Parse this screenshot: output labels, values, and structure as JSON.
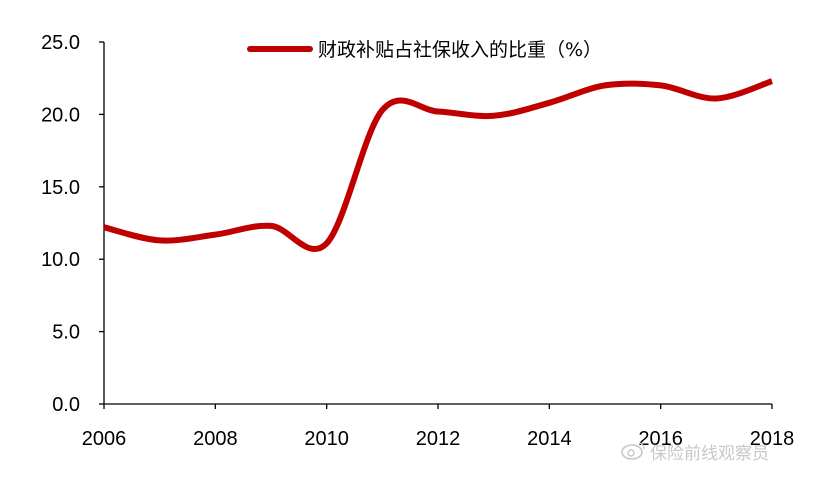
{
  "chart_data": {
    "type": "line",
    "title": "",
    "xlabel": "",
    "ylabel": "",
    "x": [
      2006,
      2007,
      2008,
      2009,
      2010,
      2011,
      2012,
      2013,
      2014,
      2015,
      2016,
      2017,
      2018
    ],
    "series": [
      {
        "name": "财政补贴占社保收入的比重（%）",
        "color": "#c00000",
        "values": [
          12.2,
          11.3,
          11.7,
          12.3,
          11.1,
          20.3,
          20.2,
          19.9,
          20.8,
          22.0,
          22.0,
          21.1,
          22.3
        ]
      }
    ],
    "xlim": [
      2006,
      2018
    ],
    "ylim": [
      0,
      25
    ],
    "x_ticks": [
      "2006",
      "2008",
      "2010",
      "2012",
      "2014",
      "2016",
      "2018"
    ],
    "y_ticks": [
      "0.0",
      "5.0",
      "10.0",
      "15.0",
      "20.0",
      "25.0"
    ],
    "grid": false,
    "legend_position": "top"
  },
  "watermark": {
    "icon": "weibo-icon",
    "text": "保险前线观察员"
  }
}
